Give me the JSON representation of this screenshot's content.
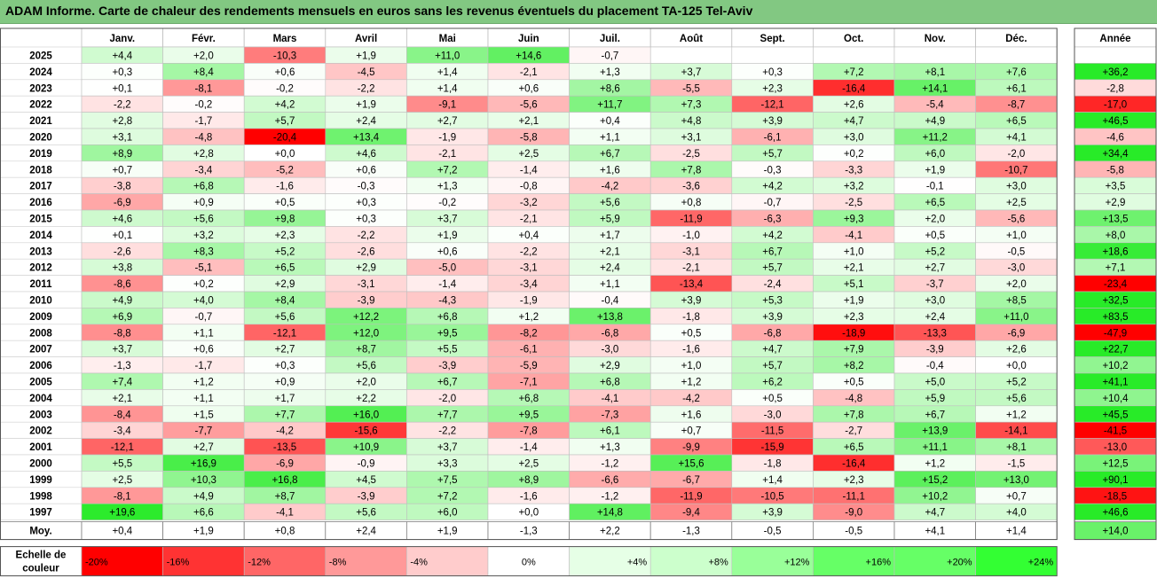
{
  "title": "ADAM Informe. Carte de chaleur des rendements mensuels en euros sans les revenus éventuels du placement TA-125 Tel-Aviv",
  "chart_data": {
    "type": "heatmap",
    "columns": [
      "Janv.",
      "Févr.",
      "Mars",
      "Avril",
      "Mai",
      "Juin",
      "Juil.",
      "Août",
      "Sept.",
      "Oct.",
      "Nov.",
      "Déc."
    ],
    "year_column_label": "Année",
    "average_row_label": "Moy.",
    "color_scale_label": [
      "Echelle de",
      "couleur"
    ],
    "color_scale": {
      "labels": [
        "-20%",
        "-16%",
        "-12%",
        "-8%",
        "-4%",
        "0%",
        "+4%",
        "+8%",
        "+12%",
        "+16%",
        "+20%",
        "+24%"
      ],
      "colors": [
        "#ff0000",
        "#ff3333",
        "#ff6666",
        "#ff9999",
        "#ffcccc",
        "#ffffff",
        "#e6ffe6",
        "#ccffcc",
        "#99ff99",
        "#66ff66",
        "#66ff66",
        "#33ff33"
      ],
      "negative_color": "#ff0000",
      "positive_color": "#33dd33"
    },
    "rows": [
      {
        "year": "2025",
        "values": [
          "+4,4",
          "+2,0",
          "-10,3",
          "+1,9",
          "+11,0",
          "+14,6",
          "-0,7",
          "",
          "",
          "",
          "",
          ""
        ],
        "annual": ""
      },
      {
        "year": "2024",
        "values": [
          "+0,3",
          "+8,4",
          "+0,6",
          "-4,5",
          "+1,4",
          "-2,1",
          "+1,3",
          "+3,7",
          "+0,3",
          "+7,2",
          "+8,1",
          "+7,6"
        ],
        "annual": "+36,2"
      },
      {
        "year": "2023",
        "values": [
          "+0,1",
          "-8,1",
          "-0,2",
          "-2,2",
          "+1,4",
          "+0,6",
          "+8,6",
          "-5,5",
          "+2,3",
          "-16,4",
          "+14,1",
          "+6,1"
        ],
        "annual": "-2,8"
      },
      {
        "year": "2022",
        "values": [
          "-2,2",
          "-0,2",
          "+4,2",
          "+1,9",
          "-9,1",
          "-5,6",
          "+11,7",
          "+7,3",
          "-12,1",
          "+2,6",
          "-5,4",
          "-8,7"
        ],
        "annual": "-17,0"
      },
      {
        "year": "2021",
        "values": [
          "+2,8",
          "-1,7",
          "+5,7",
          "+2,4",
          "+2,7",
          "+2,1",
          "+0,4",
          "+4,8",
          "+3,9",
          "+4,7",
          "+4,9",
          "+6,5"
        ],
        "annual": "+46,5"
      },
      {
        "year": "2020",
        "values": [
          "+3,1",
          "-4,8",
          "-20,4",
          "+13,4",
          "-1,9",
          "-5,8",
          "+1,1",
          "+3,1",
          "-6,1",
          "+3,0",
          "+11,2",
          "+4,1"
        ],
        "annual": "-4,6"
      },
      {
        "year": "2019",
        "values": [
          "+8,9",
          "+2,8",
          "+0,0",
          "+4,6",
          "-2,1",
          "+2,5",
          "+6,7",
          "-2,5",
          "+5,7",
          "+0,2",
          "+6,0",
          "-2,0"
        ],
        "annual": "+34,4"
      },
      {
        "year": "2018",
        "values": [
          "+0,7",
          "-3,4",
          "-5,2",
          "+0,6",
          "+7,2",
          "-1,4",
          "+1,6",
          "+7,8",
          "-0,3",
          "-3,3",
          "+1,9",
          "-10,7"
        ],
        "annual": "-5,8"
      },
      {
        "year": "2017",
        "values": [
          "-3,8",
          "+6,8",
          "-1,6",
          "-0,3",
          "+1,3",
          "-0,8",
          "-4,2",
          "-3,6",
          "+4,2",
          "+3,2",
          "-0,1",
          "+3,0"
        ],
        "annual": "+3,5"
      },
      {
        "year": "2016",
        "values": [
          "-6,9",
          "+0,9",
          "+0,5",
          "+0,3",
          "-0,2",
          "-3,2",
          "+5,6",
          "+0,8",
          "-0,7",
          "-2,5",
          "+6,5",
          "+2,5"
        ],
        "annual": "+2,9"
      },
      {
        "year": "2015",
        "values": [
          "+4,6",
          "+5,6",
          "+9,8",
          "+0,3",
          "+3,7",
          "-2,1",
          "+5,9",
          "-11,9",
          "-6,3",
          "+9,3",
          "+2,0",
          "-5,6"
        ],
        "annual": "+13,5"
      },
      {
        "year": "2014",
        "values": [
          "+0,1",
          "+3,2",
          "+2,3",
          "-2,2",
          "+1,9",
          "+0,4",
          "+1,7",
          "-1,0",
          "+4,2",
          "-4,1",
          "+0,5",
          "+1,0"
        ],
        "annual": "+8,0"
      },
      {
        "year": "2013",
        "values": [
          "-2,6",
          "+8,3",
          "+5,2",
          "-2,6",
          "+0,6",
          "-2,2",
          "+2,1",
          "-3,1",
          "+6,7",
          "+1,0",
          "+5,2",
          "-0,5"
        ],
        "annual": "+18,6"
      },
      {
        "year": "2012",
        "values": [
          "+3,8",
          "-5,1",
          "+6,5",
          "+2,9",
          "-5,0",
          "-3,1",
          "+2,4",
          "-2,1",
          "+5,7",
          "+2,1",
          "+2,7",
          "-3,0"
        ],
        "annual": "+7,1"
      },
      {
        "year": "2011",
        "values": [
          "-8,6",
          "+0,2",
          "+2,9",
          "-3,1",
          "-1,4",
          "-3,4",
          "+1,1",
          "-13,4",
          "-2,4",
          "+5,1",
          "-3,7",
          "+2,0"
        ],
        "annual": "-23,4"
      },
      {
        "year": "2010",
        "values": [
          "+4,9",
          "+4,0",
          "+8,4",
          "-3,9",
          "-4,3",
          "-1,9",
          "-0,4",
          "+3,9",
          "+5,3",
          "+1,9",
          "+3,0",
          "+8,5"
        ],
        "annual": "+32,5"
      },
      {
        "year": "2009",
        "values": [
          "+6,9",
          "-0,7",
          "+5,6",
          "+12,2",
          "+6,8",
          "+1,2",
          "+13,8",
          "-1,8",
          "+3,9",
          "+2,3",
          "+2,4",
          "+11,0"
        ],
        "annual": "+83,5"
      },
      {
        "year": "2008",
        "values": [
          "-8,8",
          "+1,1",
          "-12,1",
          "+12,0",
          "+9,5",
          "-8,2",
          "-6,8",
          "+0,5",
          "-6,8",
          "-18,9",
          "-13,3",
          "-6,9"
        ],
        "annual": "-47,9"
      },
      {
        "year": "2007",
        "values": [
          "+3,7",
          "+0,6",
          "+2,7",
          "+8,7",
          "+5,5",
          "-6,1",
          "-3,0",
          "-1,6",
          "+4,7",
          "+7,9",
          "-3,9",
          "+2,6"
        ],
        "annual": "+22,7"
      },
      {
        "year": "2006",
        "values": [
          "-1,3",
          "-1,7",
          "+0,3",
          "+5,6",
          "-3,9",
          "-5,9",
          "+2,9",
          "+1,0",
          "+5,7",
          "+8,2",
          "-0,4",
          "+0,0"
        ],
        "annual": "+10,2"
      },
      {
        "year": "2005",
        "values": [
          "+7,4",
          "+1,2",
          "+0,9",
          "+2,0",
          "+6,7",
          "-7,1",
          "+6,8",
          "+1,2",
          "+6,2",
          "+0,5",
          "+5,0",
          "+5,2"
        ],
        "annual": "+41,1"
      },
      {
        "year": "2004",
        "values": [
          "+2,1",
          "+1,1",
          "+1,7",
          "+2,2",
          "-2,0",
          "+6,8",
          "-4,1",
          "-4,2",
          "+0,5",
          "-4,8",
          "+5,9",
          "+5,6"
        ],
        "annual": "+10,4"
      },
      {
        "year": "2003",
        "values": [
          "-8,4",
          "+1,5",
          "+7,7",
          "+16,0",
          "+7,7",
          "+9,5",
          "-7,3",
          "+1,6",
          "-3,0",
          "+7,8",
          "+6,7",
          "+1,2"
        ],
        "annual": "+45,5"
      },
      {
        "year": "2002",
        "values": [
          "-3,4",
          "-7,7",
          "-4,2",
          "-15,6",
          "-2,2",
          "-7,8",
          "+6,1",
          "+0,7",
          "-11,5",
          "-2,7",
          "+13,9",
          "-14,1"
        ],
        "annual": "-41,5"
      },
      {
        "year": "2001",
        "values": [
          "-12,1",
          "+2,7",
          "-13,5",
          "+10,9",
          "+3,7",
          "-1,4",
          "+1,3",
          "-9,9",
          "-15,9",
          "+6,5",
          "+11,1",
          "+8,1"
        ],
        "annual": "-13,0"
      },
      {
        "year": "2000",
        "values": [
          "+5,5",
          "+16,9",
          "-6,9",
          "-0,9",
          "+3,3",
          "+2,5",
          "-1,2",
          "+15,6",
          "-1,8",
          "-16,4",
          "+1,2",
          "-1,5"
        ],
        "annual": "+12,5"
      },
      {
        "year": "1999",
        "values": [
          "+2,5",
          "+10,3",
          "+16,8",
          "+4,5",
          "+7,5",
          "+8,9",
          "-6,6",
          "-6,7",
          "+1,4",
          "+2,3",
          "+15,2",
          "+13,0"
        ],
        "annual": "+90,1"
      },
      {
        "year": "1998",
        "values": [
          "-8,1",
          "+4,9",
          "+8,7",
          "-3,9",
          "+7,2",
          "-1,6",
          "-1,2",
          "-11,9",
          "-10,5",
          "-11,1",
          "+10,2",
          "+0,7"
        ],
        "annual": "-18,5"
      },
      {
        "year": "1997",
        "values": [
          "+19,6",
          "+6,6",
          "-4,1",
          "+5,6",
          "+6,0",
          "+0,0",
          "+14,8",
          "-9,4",
          "+3,9",
          "-9,0",
          "+4,7",
          "+4,0"
        ],
        "annual": "+46,6"
      }
    ],
    "average": {
      "values": [
        "+0,4",
        "+1,9",
        "+0,8",
        "+2,4",
        "+1,9",
        "-1,3",
        "+2,2",
        "-1,3",
        "-0,5",
        "-0,5",
        "+4,1",
        "+1,4"
      ],
      "annual": "+14,0"
    }
  }
}
